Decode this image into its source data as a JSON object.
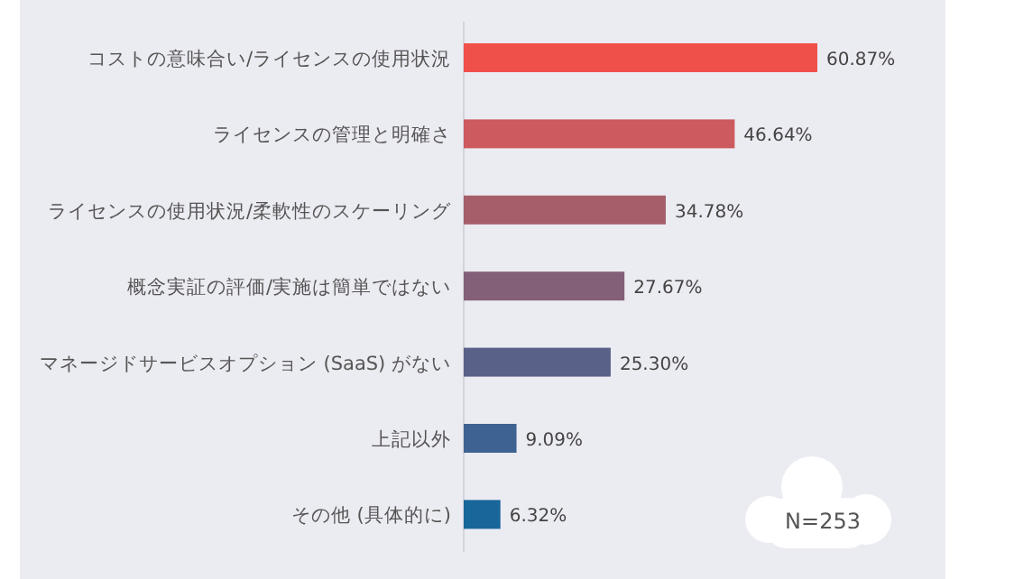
{
  "chart_data": {
    "type": "bar",
    "orientation": "horizontal",
    "categories": [
      "コストの意味合い/ライセンスの使用状況",
      "ライセンスの管理と明確さ",
      "ライセンスの使用状況/柔軟性のスケーリング",
      "概念実証の評価/実施は簡単ではない",
      "マネージドサービスオプション (SaaS) がない",
      "上記以外",
      "その他 (具体的に)"
    ],
    "values": [
      60.87,
      46.64,
      34.78,
      27.67,
      25.3,
      9.09,
      6.32
    ],
    "value_labels": [
      "60.87%",
      "46.64%",
      "34.78%",
      "27.67%",
      "25.30%",
      "9.09%",
      "6.32%"
    ],
    "colors": [
      "#f0504a",
      "#cc5a5e",
      "#a65e6a",
      "#835f78",
      "#596189",
      "#3e6392",
      "#19669a"
    ],
    "annotations": [
      "N=253"
    ]
  }
}
